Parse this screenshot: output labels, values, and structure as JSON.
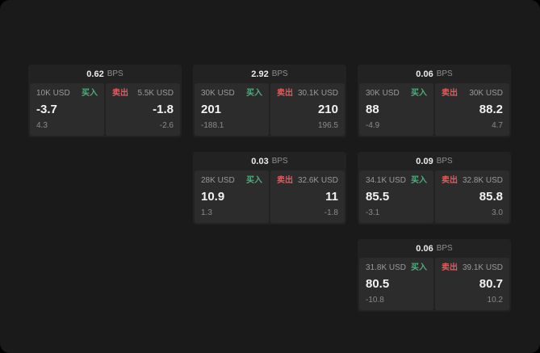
{
  "labels": {
    "bps": "BPS",
    "buy": "买入",
    "sell": "卖出"
  },
  "colors": {
    "buy": "#4cae7c",
    "sell": "#e05c5c",
    "page_bg": "#1a1a1a",
    "card_bg": "#222222",
    "panel_bg": "#2c2c2c"
  },
  "cards": [
    {
      "bps": "0.62",
      "buy": {
        "size": "10K USD",
        "price": "-3.7",
        "delta": "4.3"
      },
      "sell": {
        "size": "5.5K USD",
        "price": "-1.8",
        "delta": "-2.6"
      }
    },
    {
      "bps": "2.92",
      "buy": {
        "size": "30K USD",
        "price": "201",
        "delta": "-188.1"
      },
      "sell": {
        "size": "30.1K USD",
        "price": "210",
        "delta": "196.5"
      }
    },
    {
      "bps": "0.06",
      "buy": {
        "size": "30K USD",
        "price": "88",
        "delta": "-4.9"
      },
      "sell": {
        "size": "30K USD",
        "price": "88.2",
        "delta": "4.7"
      }
    },
    {
      "bps": "0.03",
      "buy": {
        "size": "28K USD",
        "price": "10.9",
        "delta": "1.3"
      },
      "sell": {
        "size": "32.6K USD",
        "price": "11",
        "delta": "-1.8"
      }
    },
    {
      "bps": "0.09",
      "buy": {
        "size": "34.1K USD",
        "price": "85.5",
        "delta": "-3.1"
      },
      "sell": {
        "size": "32.8K USD",
        "price": "85.8",
        "delta": "3.0"
      }
    },
    {
      "bps": "0.06",
      "buy": {
        "size": "31.8K USD",
        "price": "80.5",
        "delta": "-10.8"
      },
      "sell": {
        "size": "39.1K USD",
        "price": "80.7",
        "delta": "10.2"
      }
    }
  ]
}
